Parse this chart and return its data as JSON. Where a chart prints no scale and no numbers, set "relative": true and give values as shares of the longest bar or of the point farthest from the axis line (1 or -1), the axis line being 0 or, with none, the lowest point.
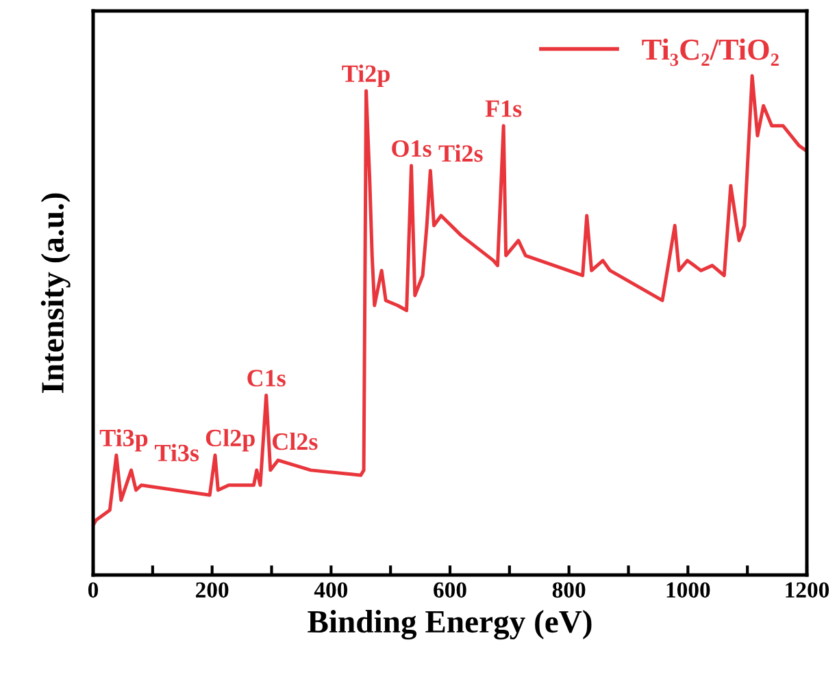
{
  "chart_data": {
    "type": "line",
    "xlabel": "Binding Energy (eV)",
    "ylabel": "Intensity (a.u.)",
    "relative": true,
    "xlim": [
      0,
      1200
    ],
    "xticks": [
      0,
      {
        "value": 100,
        "label": null
      },
      200,
      {
        "value": 300,
        "label": null
      },
      400,
      {
        "value": 500,
        "label": null
      },
      600,
      {
        "value": 700,
        "label": null
      },
      800,
      {
        "value": 900,
        "label": null
      },
      1000,
      {
        "value": 1100,
        "label": null
      },
      1200
    ],
    "tick_labels": "x",
    "legend": "top right",
    "grid": false,
    "marker": "none",
    "line_style": "solid",
    "series": [
      {
        "name": "Ti₃C₂/TiO₂",
        "color": "#e8363c",
        "x": [
          0,
          5,
          28,
          39,
          47,
          64,
          72,
          81,
          196,
          205,
          210,
          228,
          270,
          275,
          281,
          291,
          298,
          311,
          366,
          450,
          455,
          459,
          465,
          469,
          473,
          485,
          492,
          512,
          527,
          535,
          541,
          554,
          561,
          567,
          573,
          585,
          619,
          673,
          680,
          690,
          694,
          715,
          727,
          823,
          830,
          838,
          857,
          869,
          957,
          978,
          985,
          999,
          1022,
          1041,
          1061,
          1072,
          1086,
          1095,
          1108,
          1117,
          1127,
          1141,
          1160,
          1187,
          1199
        ],
        "values": [
          0.1,
          0.11,
          0.13,
          0.24,
          0.15,
          0.21,
          0.17,
          0.18,
          0.16,
          0.24,
          0.17,
          0.18,
          0.18,
          0.21,
          0.18,
          0.36,
          0.21,
          0.23,
          0.21,
          0.2,
          0.21,
          0.97,
          0.79,
          0.64,
          0.54,
          0.61,
          0.55,
          0.54,
          0.53,
          0.82,
          0.56,
          0.6,
          0.7,
          0.81,
          0.7,
          0.72,
          0.68,
          0.63,
          0.62,
          0.9,
          0.64,
          0.67,
          0.64,
          0.6,
          0.72,
          0.61,
          0.63,
          0.61,
          0.55,
          0.7,
          0.61,
          0.63,
          0.61,
          0.62,
          0.6,
          0.78,
          0.67,
          0.7,
          1.0,
          0.88,
          0.94,
          0.9,
          0.9,
          0.86,
          0.85
        ]
      }
    ],
    "annotations": [
      {
        "text": "Ti3p",
        "x": 39,
        "y": 0.24
      },
      {
        "text": "Ti3s",
        "x": 64,
        "y": 0.21
      },
      {
        "text": "Cl2p",
        "x": 205,
        "y": 0.24
      },
      {
        "text": "Cl2s",
        "x": 275,
        "y": 0.21
      },
      {
        "text": "C1s",
        "x": 291,
        "y": 0.36
      },
      {
        "text": "Ti2p",
        "x": 459,
        "y": 0.97
      },
      {
        "text": "O1s",
        "x": 535,
        "y": 0.82
      },
      {
        "text": "Ti2s",
        "x": 567,
        "y": 0.81
      },
      {
        "text": "F1s",
        "x": 690,
        "y": 0.9
      }
    ]
  }
}
